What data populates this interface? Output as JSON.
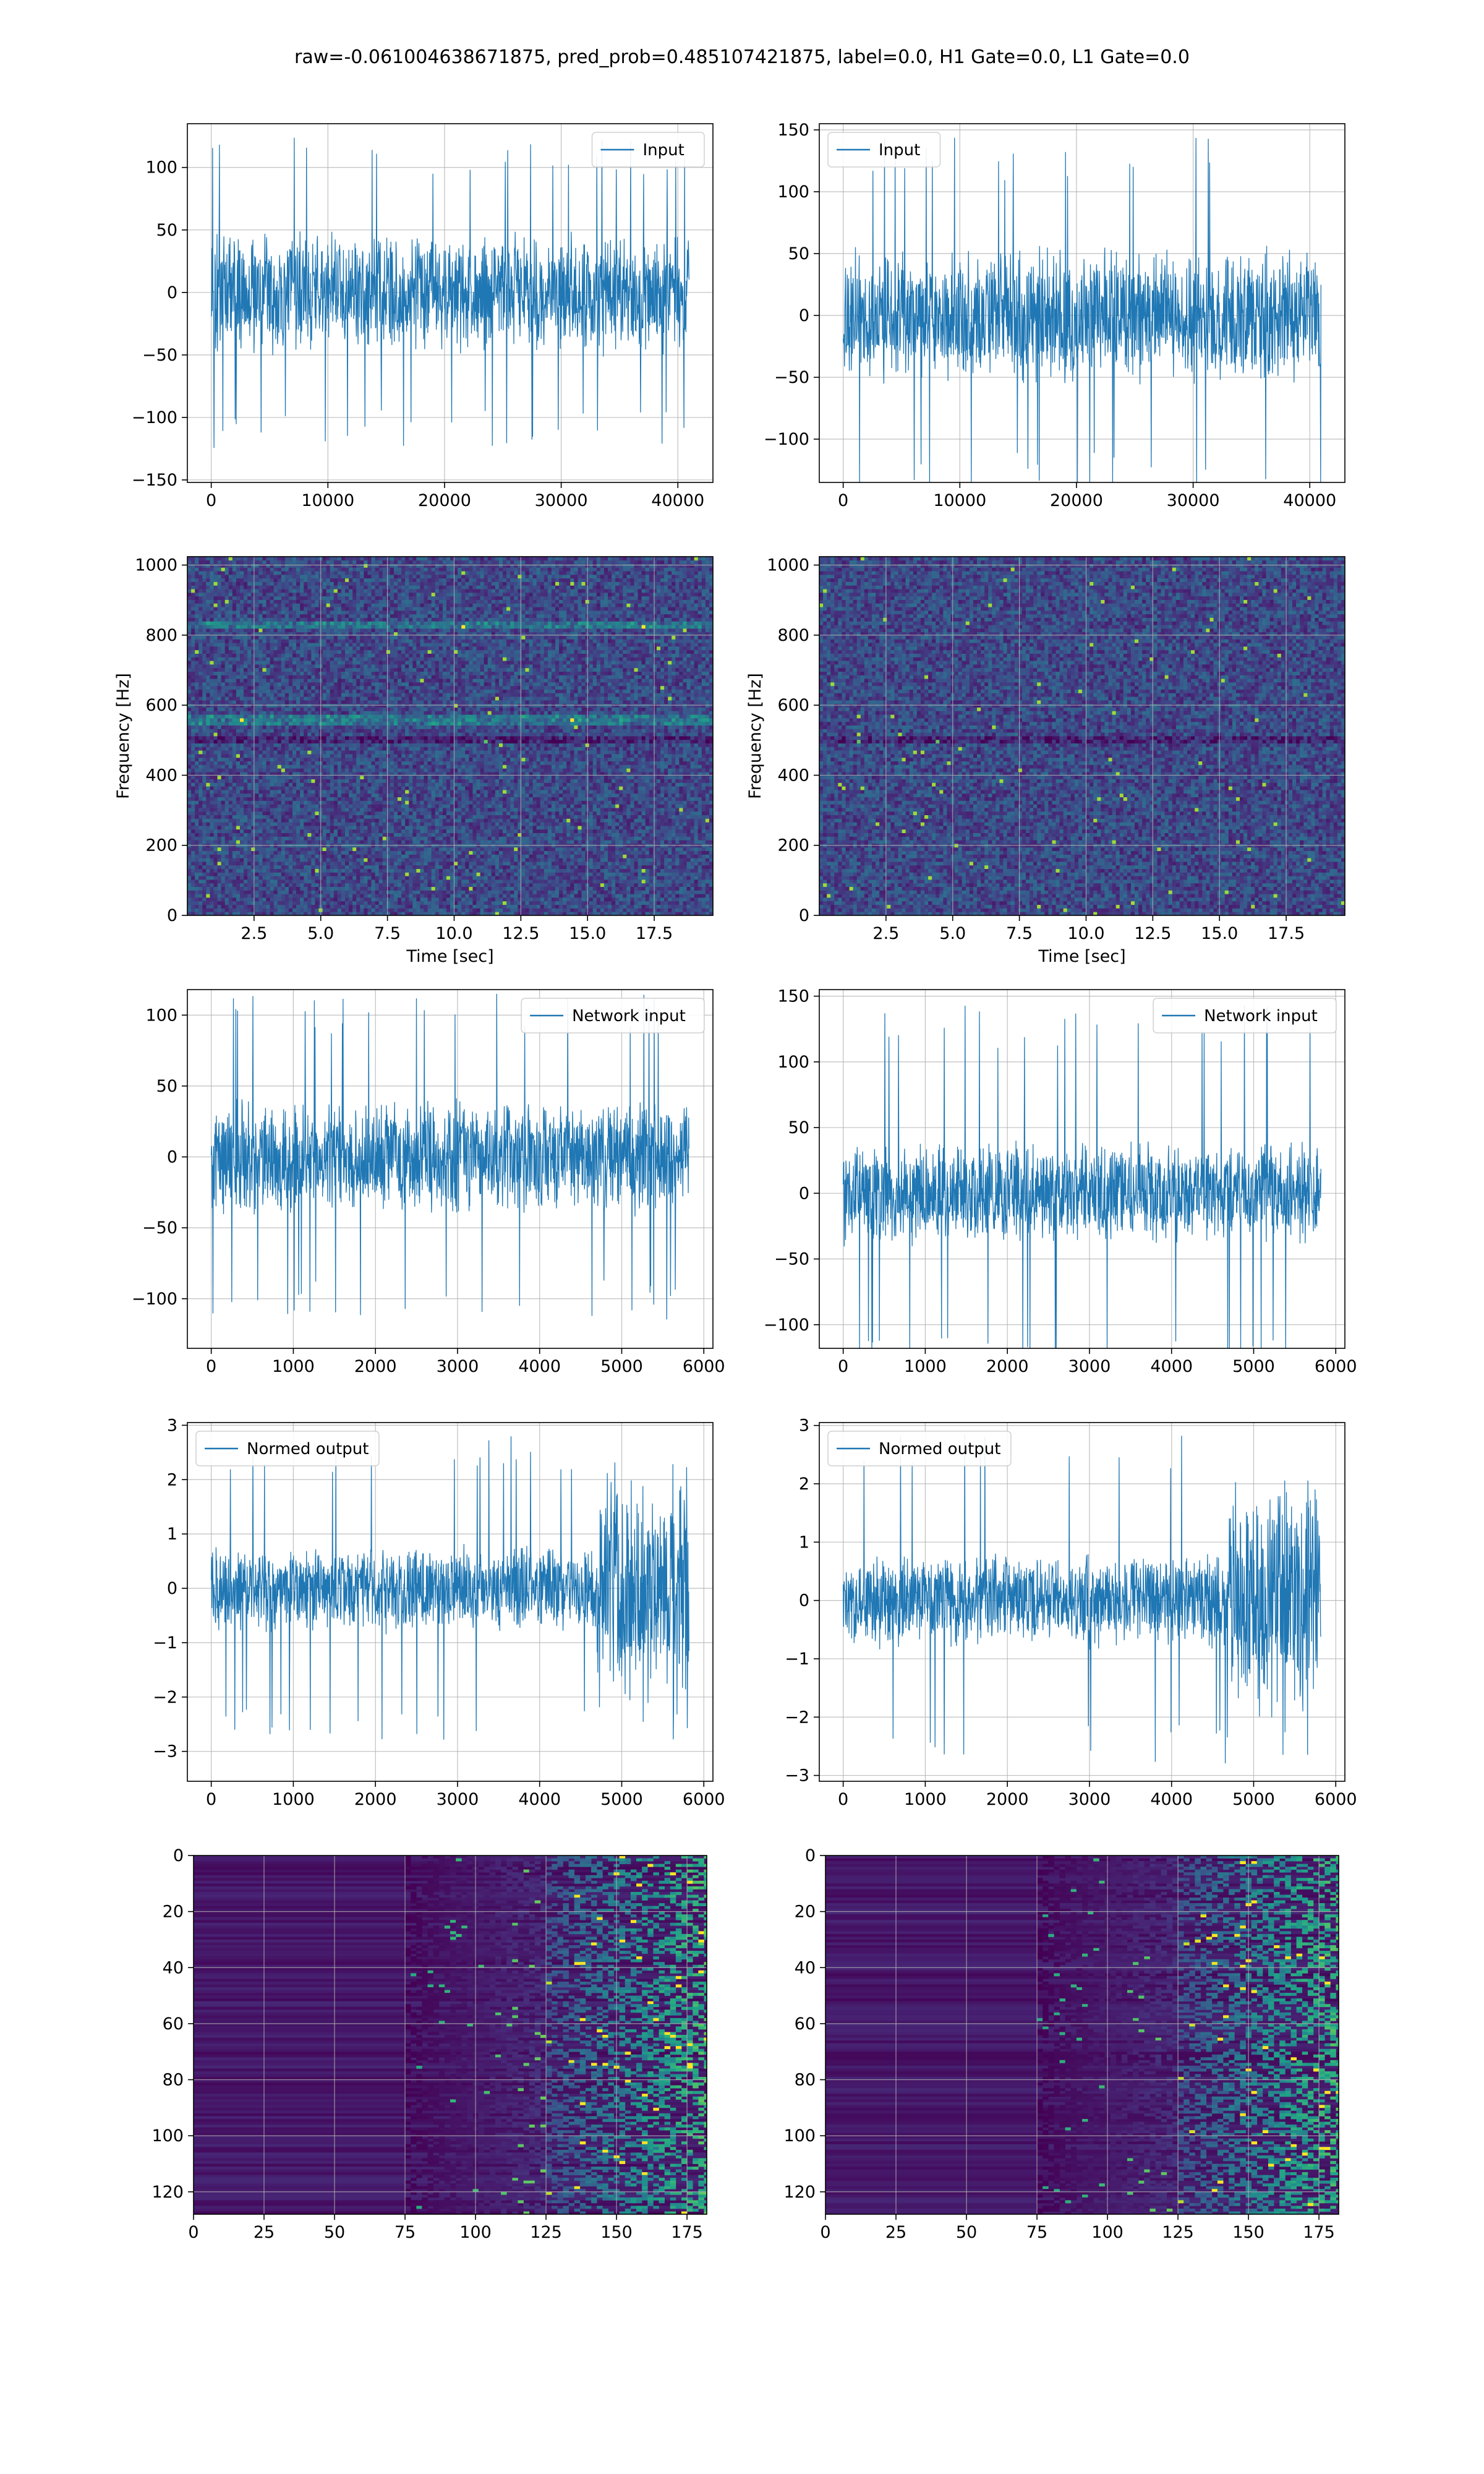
{
  "suptitle": "raw=-0.061004638671875, pred_prob=0.485107421875, label=0.0, H1 Gate=0.0, L1 Gate=0.0",
  "colors": {
    "line": "#1f77b4",
    "grid": "#b0b0b0",
    "axis": "#000000",
    "viridis_dark": "#440154"
  },
  "chart_data": [
    {
      "id": "h1-input",
      "type": "line",
      "grid": true,
      "legend": "top-right",
      "series": [
        {
          "name": "Input",
          "n": 40960,
          "amp": 45,
          "peak": 125,
          "fade": 0
        }
      ],
      "xlim": [
        -2048,
        43008
      ],
      "ylim": [
        -152,
        135
      ],
      "xticks": [
        0,
        10000,
        20000,
        30000,
        40000
      ],
      "xticklabels": [
        "0",
        "10000",
        "20000",
        "30000",
        "40000"
      ],
      "yticks": [
        -150,
        -100,
        -50,
        0,
        50,
        100
      ],
      "yticklabels": [
        "−150",
        "−100",
        "−50",
        "0",
        "50",
        "100"
      ]
    },
    {
      "id": "l1-input",
      "type": "line",
      "grid": true,
      "legend": "top-left",
      "series": [
        {
          "name": "Input",
          "n": 40960,
          "amp": 50,
          "peak": 145,
          "fade": 0
        }
      ],
      "xlim": [
        -2048,
        43008
      ],
      "ylim": [
        -135,
        155
      ],
      "xticks": [
        0,
        10000,
        20000,
        30000,
        40000
      ],
      "xticklabels": [
        "0",
        "10000",
        "20000",
        "30000",
        "40000"
      ],
      "yticks": [
        -100,
        -50,
        0,
        50,
        100,
        150
      ],
      "yticklabels": [
        "−100",
        "−50",
        "0",
        "50",
        "100",
        "150"
      ]
    },
    {
      "id": "h1-spectrogram",
      "type": "heatmap",
      "grid": true,
      "colormap": "viridis",
      "xlabel": "Time [sec]",
      "ylabel": "Frequency [Hz]",
      "xlim": [
        0,
        19.7
      ],
      "ylim": [
        0,
        1024
      ],
      "bright_bands_hz": [
        830,
        560
      ],
      "dark_bands_hz": [
        500
      ],
      "xticks": [
        2.5,
        5,
        7.5,
        10,
        12.5,
        15,
        17.5
      ],
      "xticklabels": [
        "2.5",
        "5.0",
        "7.5",
        "10.0",
        "12.5",
        "15.0",
        "17.5"
      ],
      "yticks": [
        0,
        200,
        400,
        600,
        800,
        1000
      ],
      "yticklabels": [
        "0",
        "200",
        "400",
        "600",
        "800",
        "1000"
      ]
    },
    {
      "id": "l1-spectrogram",
      "type": "heatmap",
      "grid": true,
      "colormap": "viridis",
      "xlabel": "Time [sec]",
      "ylabel": "Frequency [Hz]",
      "xlim": [
        0,
        19.7
      ],
      "ylim": [
        0,
        1024
      ],
      "bright_bands_hz": [],
      "dark_bands_hz": [
        500
      ],
      "xticks": [
        2.5,
        5,
        7.5,
        10,
        12.5,
        15,
        17.5
      ],
      "xticklabels": [
        "2.5",
        "5.0",
        "7.5",
        "10.0",
        "12.5",
        "15.0",
        "17.5"
      ],
      "yticks": [
        0,
        200,
        400,
        600,
        800,
        1000
      ],
      "yticklabels": [
        "0",
        "200",
        "400",
        "600",
        "800",
        "1000"
      ]
    },
    {
      "id": "h1-network-input",
      "type": "line",
      "grid": true,
      "legend": "top-right",
      "series": [
        {
          "name": "Network input",
          "n": 5820,
          "amp": 38,
          "peak": 115,
          "fade": 0
        }
      ],
      "xlim": [
        -291,
        6111
      ],
      "ylim": [
        -135,
        118
      ],
      "xticks": [
        0,
        1000,
        2000,
        3000,
        4000,
        5000,
        6000
      ],
      "xticklabels": [
        "0",
        "1000",
        "2000",
        "3000",
        "4000",
        "5000",
        "6000"
      ],
      "yticks": [
        -100,
        -50,
        0,
        50,
        100
      ],
      "yticklabels": [
        "−100",
        "−50",
        "0",
        "50",
        "100"
      ]
    },
    {
      "id": "l1-network-input",
      "type": "line",
      "grid": true,
      "legend": "top-right",
      "series": [
        {
          "name": "Network input",
          "n": 5820,
          "amp": 36,
          "peak": 145,
          "fade": 0
        }
      ],
      "xlim": [
        -291,
        6111
      ],
      "ylim": [
        -118,
        155
      ],
      "xticks": [
        0,
        1000,
        2000,
        3000,
        4000,
        5000,
        6000
      ],
      "xticklabels": [
        "0",
        "1000",
        "2000",
        "3000",
        "4000",
        "5000",
        "6000"
      ],
      "yticks": [
        -100,
        -50,
        0,
        50,
        100,
        150
      ],
      "yticklabels": [
        "−100",
        "−50",
        "0",
        "50",
        "100",
        "150"
      ]
    },
    {
      "id": "h1-normed-output",
      "type": "line",
      "grid": true,
      "legend": "top-left",
      "series": [
        {
          "name": "Normed output",
          "n": 5820,
          "amp": 0.75,
          "peak": 2.8,
          "fade": 1,
          "burst_from": 4700,
          "burst_amp": 1.9
        }
      ],
      "xlim": [
        -291,
        6111
      ],
      "ylim": [
        -3.55,
        3.05
      ],
      "xticks": [
        0,
        1000,
        2000,
        3000,
        4000,
        5000,
        6000
      ],
      "xticklabels": [
        "0",
        "1000",
        "2000",
        "3000",
        "4000",
        "5000",
        "6000"
      ],
      "yticks": [
        -3,
        -2,
        -1,
        0,
        1,
        2,
        3
      ],
      "yticklabels": [
        "−3",
        "−2",
        "−1",
        "0",
        "1",
        "2",
        "3"
      ]
    },
    {
      "id": "l1-normed-output",
      "type": "line",
      "grid": true,
      "legend": "top-left",
      "series": [
        {
          "name": "Normed output",
          "n": 5820,
          "amp": 0.75,
          "peak": 2.85,
          "fade": 1,
          "burst_from": 4700,
          "burst_amp": 1.9
        }
      ],
      "xlim": [
        -291,
        6111
      ],
      "ylim": [
        -3.1,
        3.05
      ],
      "xticks": [
        0,
        1000,
        2000,
        3000,
        4000,
        5000,
        6000
      ],
      "xticklabels": [
        "0",
        "1000",
        "2000",
        "3000",
        "4000",
        "5000",
        "6000"
      ],
      "yticks": [
        -3,
        -2,
        -1,
        0,
        1,
        2,
        3
      ],
      "yticklabels": [
        "−3",
        "−2",
        "−1",
        "0",
        "1",
        "2",
        "3"
      ]
    },
    {
      "id": "h1-embedding",
      "type": "heatmap",
      "grid": true,
      "colormap": "viridis",
      "rows": 128,
      "cols": 182,
      "active_from_col": 125,
      "xlim": [
        0,
        182
      ],
      "ylim": [
        128,
        0
      ],
      "xticks": [
        0,
        25,
        50,
        75,
        100,
        125,
        150,
        175
      ],
      "xticklabels": [
        "0",
        "25",
        "50",
        "75",
        "100",
        "125",
        "150",
        "175"
      ],
      "yticks": [
        0,
        20,
        40,
        60,
        80,
        100,
        120
      ],
      "yticklabels": [
        "0",
        "20",
        "40",
        "60",
        "80",
        "100",
        "120"
      ]
    },
    {
      "id": "l1-embedding",
      "type": "heatmap",
      "grid": true,
      "colormap": "viridis",
      "rows": 128,
      "cols": 182,
      "active_from_col": 125,
      "xlim": [
        0,
        182
      ],
      "ylim": [
        128,
        0
      ],
      "xticks": [
        0,
        25,
        50,
        75,
        100,
        125,
        150,
        175
      ],
      "xticklabels": [
        "0",
        "25",
        "50",
        "75",
        "100",
        "125",
        "150",
        "175"
      ],
      "yticks": [
        0,
        20,
        40,
        60,
        80,
        100,
        120
      ],
      "yticklabels": [
        "0",
        "20",
        "40",
        "60",
        "80",
        "100",
        "120"
      ]
    }
  ]
}
